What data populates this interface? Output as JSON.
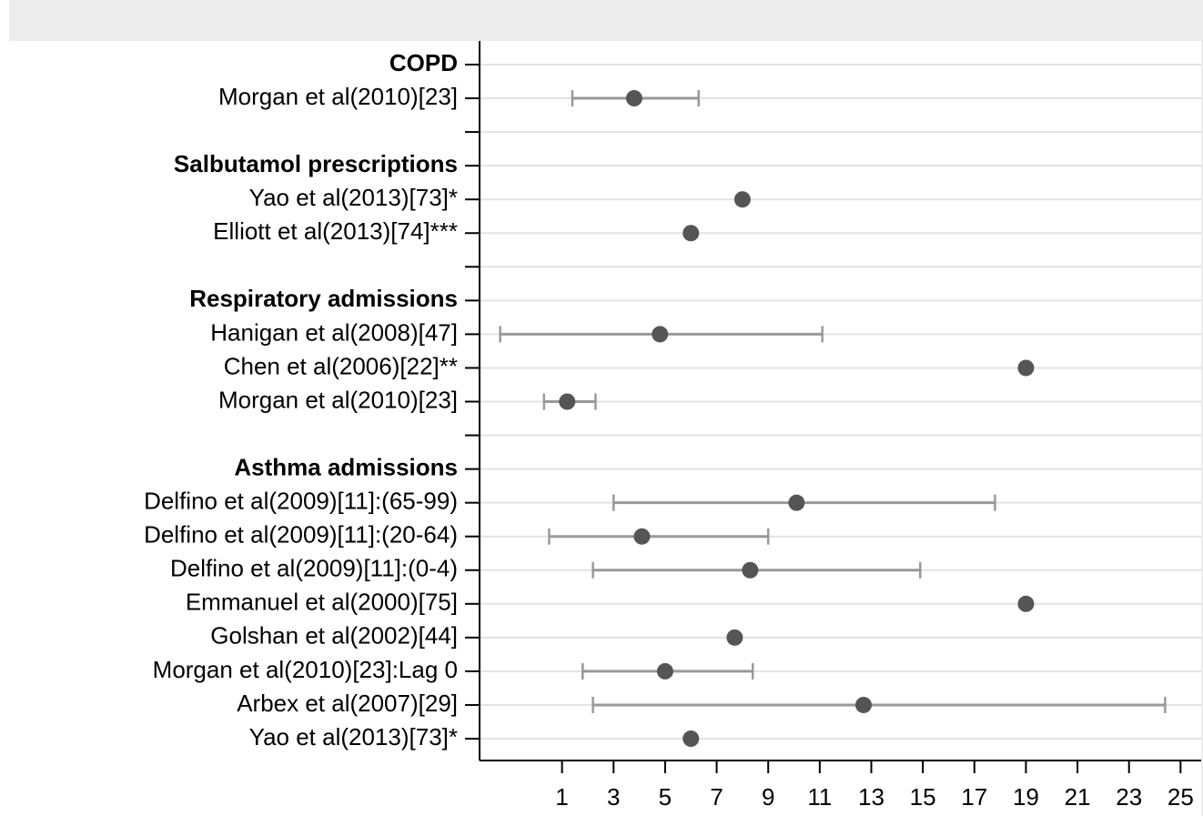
{
  "chart_data": {
    "type": "forest",
    "categories": [
      "COPD",
      "Morgan et al(2010)[23]",
      null,
      "Salbutamol prescriptions",
      "Yao et al(2013)[73]*",
      "Elliott et al(2013)[74]***",
      null,
      "Respiratory admissions",
      "Hanigan et al(2008)[47]",
      "Chen et al(2006)[22]**",
      "Morgan et al(2010)[23]",
      null,
      "Asthma admissions",
      "Delfino et al(2009)[11]:(65-99)",
      "Delfino et al(2009)[11]:(20-64)",
      "Delfino et al(2009)[11]:(0-4)",
      "Emmanuel et al(2000)[75]",
      "Golshan et al(2002)[44]",
      "Morgan et al(2010)[23]:Lag 0",
      "Arbex et al(2007)[29]",
      "Yao et al(2013)[73]*"
    ],
    "header": [
      true,
      false,
      false,
      true,
      false,
      false,
      false,
      true,
      false,
      false,
      false,
      false,
      true,
      false,
      false,
      false,
      false,
      false,
      false,
      false,
      false
    ],
    "values": [
      null,
      3.8,
      null,
      null,
      8.0,
      6.0,
      null,
      null,
      4.8,
      19.0,
      1.2,
      null,
      null,
      10.1,
      4.1,
      8.3,
      19.0,
      7.7,
      5.0,
      12.7,
      6.0
    ],
    "lower": [
      null,
      1.4,
      null,
      null,
      null,
      null,
      null,
      null,
      -1.4,
      null,
      0.3,
      null,
      null,
      3.0,
      0.5,
      2.2,
      null,
      null,
      1.8,
      2.2,
      null
    ],
    "upper": [
      null,
      6.3,
      null,
      null,
      null,
      null,
      null,
      null,
      11.1,
      null,
      2.3,
      null,
      null,
      17.8,
      9.0,
      14.9,
      null,
      null,
      8.4,
      24.4,
      null
    ],
    "color": "#555555",
    "ci_color": "#999999",
    "xlim": [
      -2.2,
      25.8
    ],
    "xticks": [
      1,
      3,
      5,
      7,
      9,
      11,
      13,
      15,
      17,
      19,
      21,
      23,
      25
    ],
    "grid": true
  }
}
